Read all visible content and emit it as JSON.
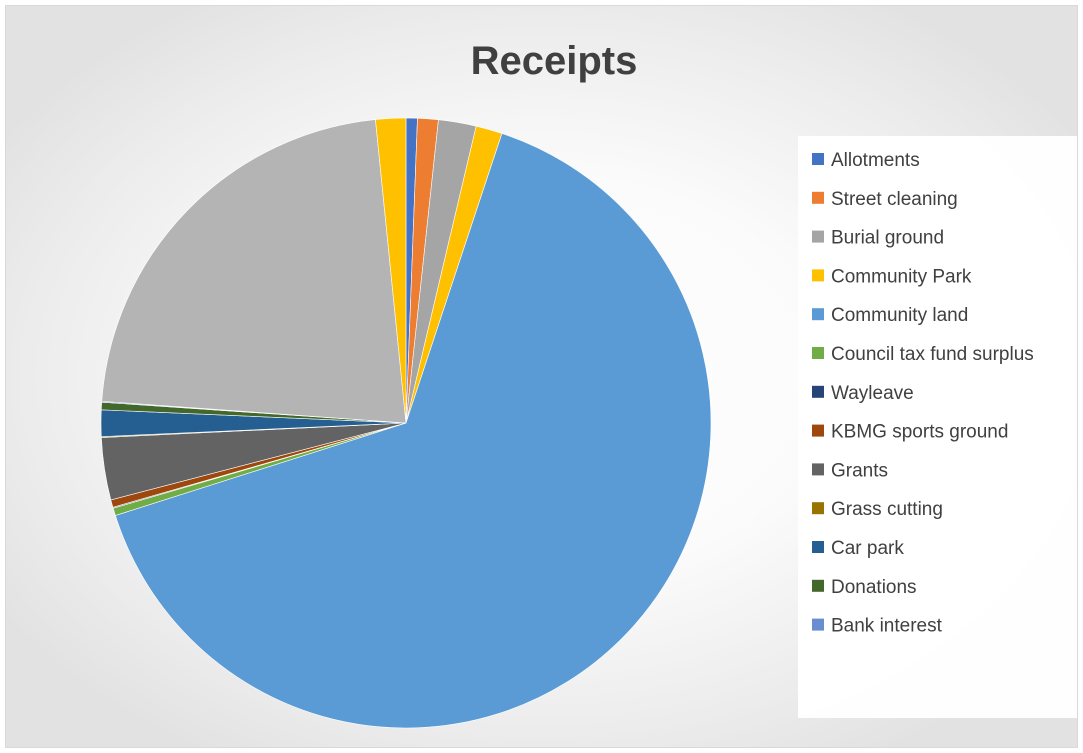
{
  "chart_data": {
    "type": "pie",
    "title": "Receipts",
    "legend_position": "right",
    "start_angle_deg": 0,
    "direction": "clockwise",
    "categories": [
      "Allotments",
      "Street cleaning",
      "Burial ground",
      "Community Park",
      "Community land",
      "Council tax fund surplus",
      "Wayleave",
      "KBMG sports ground",
      "Grants",
      "Grass cutting",
      "Car park",
      "Donations",
      "Bank interest"
    ],
    "values": [
      0.6,
      1.1,
      2.0,
      1.4,
      65.1,
      0.4,
      0.05,
      0.4,
      3.3,
      0.05,
      1.4,
      0.4,
      0.05
    ],
    "colors": [
      "#4472c4",
      "#ed7d31",
      "#a5a5a5",
      "#ffc000",
      "#5b9bd5",
      "#70ad47",
      "#264478",
      "#9e480e",
      "#636363",
      "#997300",
      "#255e91",
      "#43682b",
      "#698ed0"
    ],
    "extra_slices": [
      {
        "value": 22.3,
        "color": "#b4b4b4"
      },
      {
        "value": 1.6,
        "color": "#ffc000"
      }
    ]
  }
}
